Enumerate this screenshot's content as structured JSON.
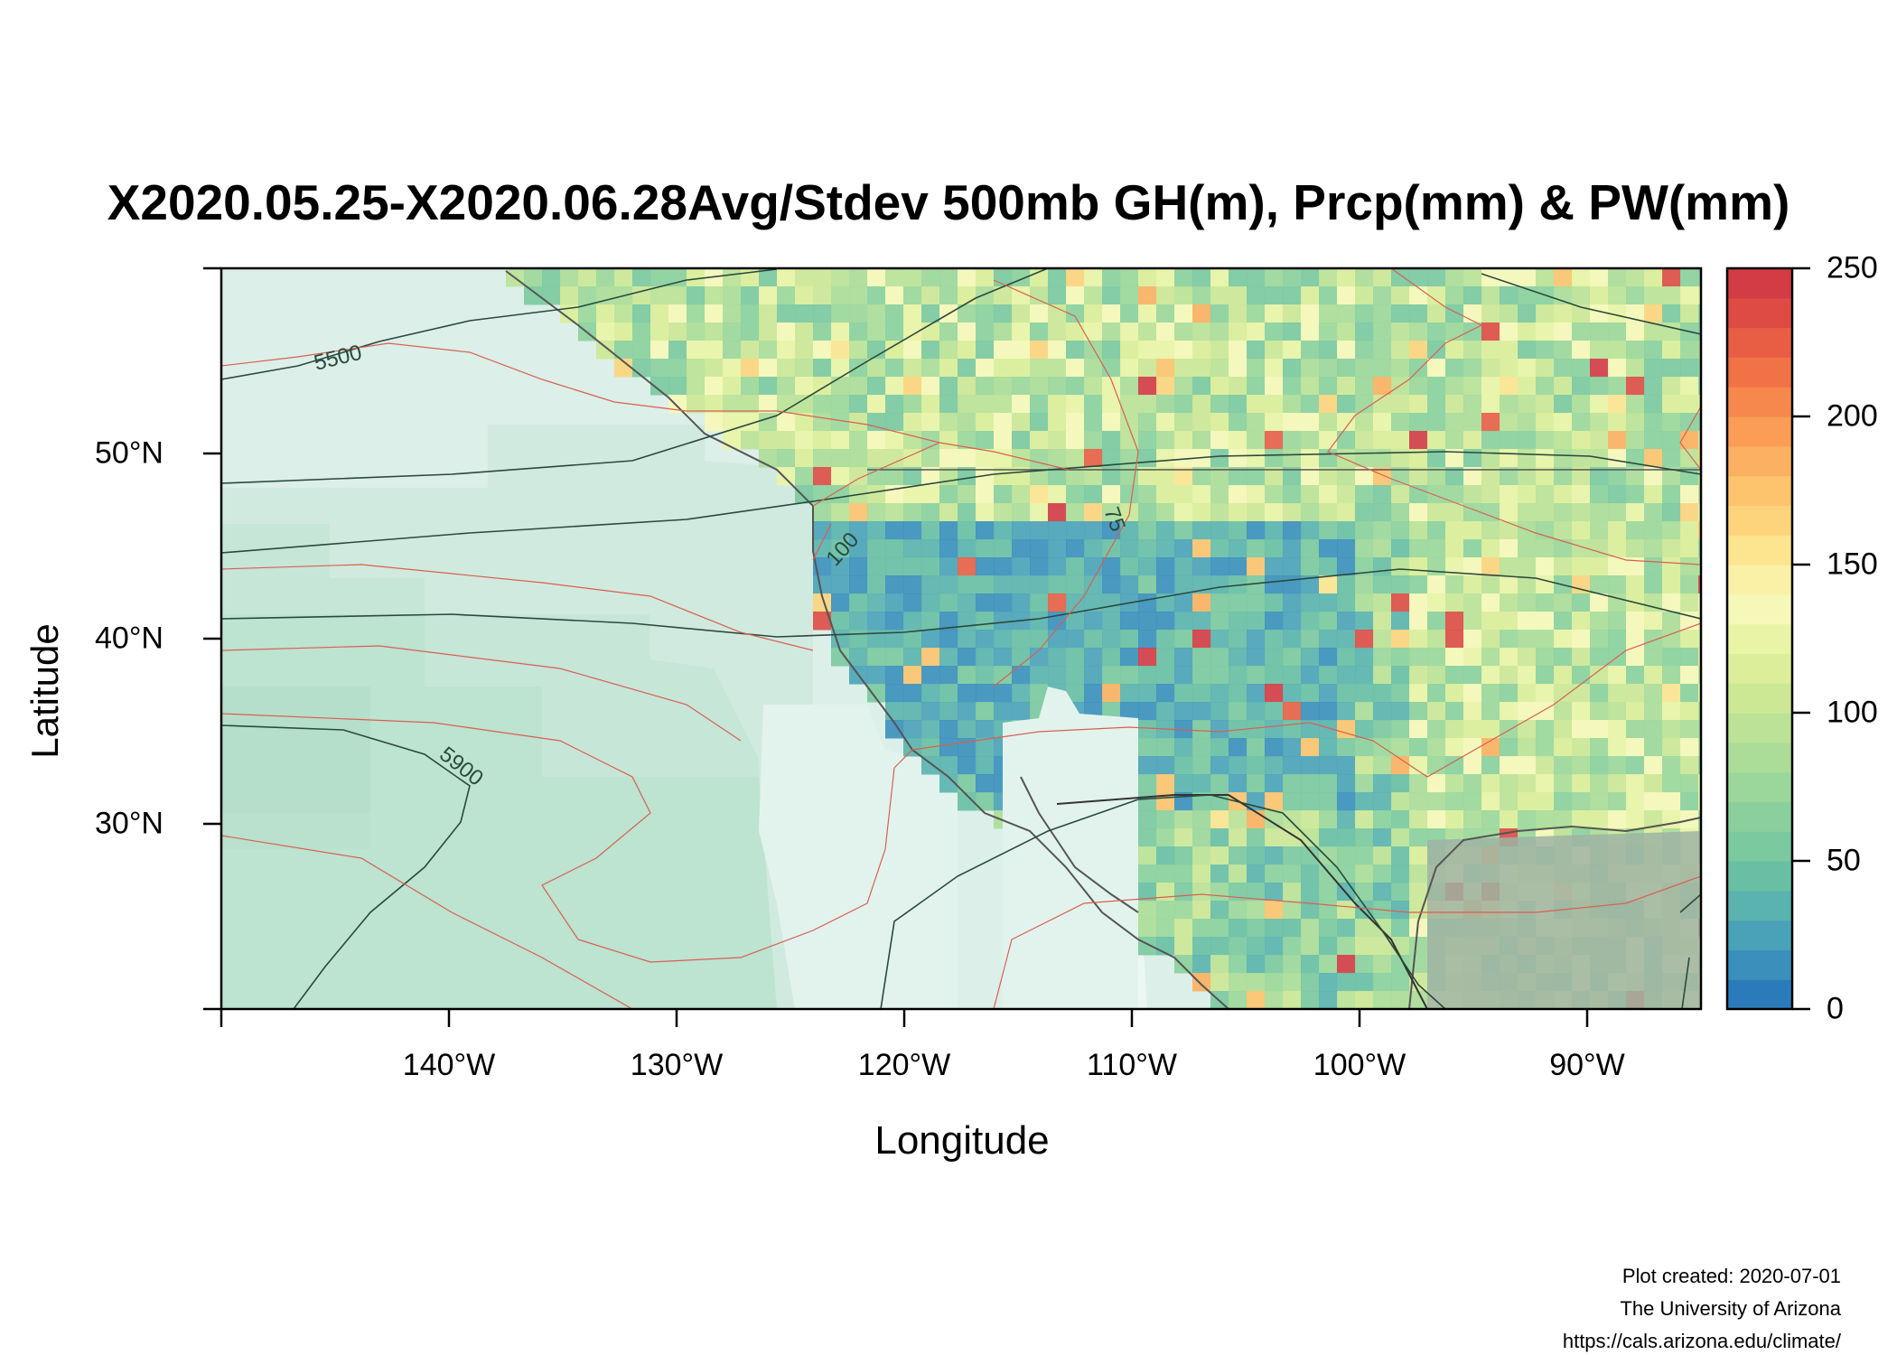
{
  "title": "X2020.05.25-X2020.06.28Avg/Stdev 500mb GH(m), Prcp(mm) & PW(mm)",
  "axes": {
    "xlabel": "Longitude",
    "ylabel": "Latitude",
    "lon_range": [
      -150,
      -85
    ],
    "lat_range": [
      20,
      60
    ],
    "x_ticks": [
      {
        "value": -140,
        "label": "140°W"
      },
      {
        "value": -130,
        "label": "130°W"
      },
      {
        "value": -120,
        "label": "120°W"
      },
      {
        "value": -110,
        "label": "110°W"
      },
      {
        "value": -100,
        "label": "100°W"
      },
      {
        "value": -90,
        "label": "90°W"
      }
    ],
    "y_ticks": [
      {
        "value": 30,
        "label": "30°N"
      },
      {
        "value": 40,
        "label": "40°N"
      },
      {
        "value": 50,
        "label": "50°N"
      }
    ]
  },
  "colorbar": {
    "range": [
      0,
      250
    ],
    "ticks": [
      "0",
      "50",
      "100",
      "150",
      "200",
      "250"
    ],
    "colors": [
      "#2b7bba",
      "#3a8fbb",
      "#4aa2b8",
      "#5ab3ae",
      "#68bfa4",
      "#7ac99f",
      "#8bd09c",
      "#9bd79a",
      "#abdd98",
      "#bbe296",
      "#cce895",
      "#dcee99",
      "#eaf4a6",
      "#f6f8b8",
      "#fbf1a6",
      "#fde48f",
      "#fdd47c",
      "#fdc36d",
      "#fcb061",
      "#fb9d56",
      "#f7884d",
      "#f17246",
      "#e85e44",
      "#dd4b44",
      "#d33b45"
    ]
  },
  "contour_labels": [
    "5500",
    "5900",
    "100",
    "75"
  ],
  "credits": [
    "Plot created: 2020-07-01",
    "The University of Arizona",
    "https://cals.arizona.edu/climate/"
  ]
}
